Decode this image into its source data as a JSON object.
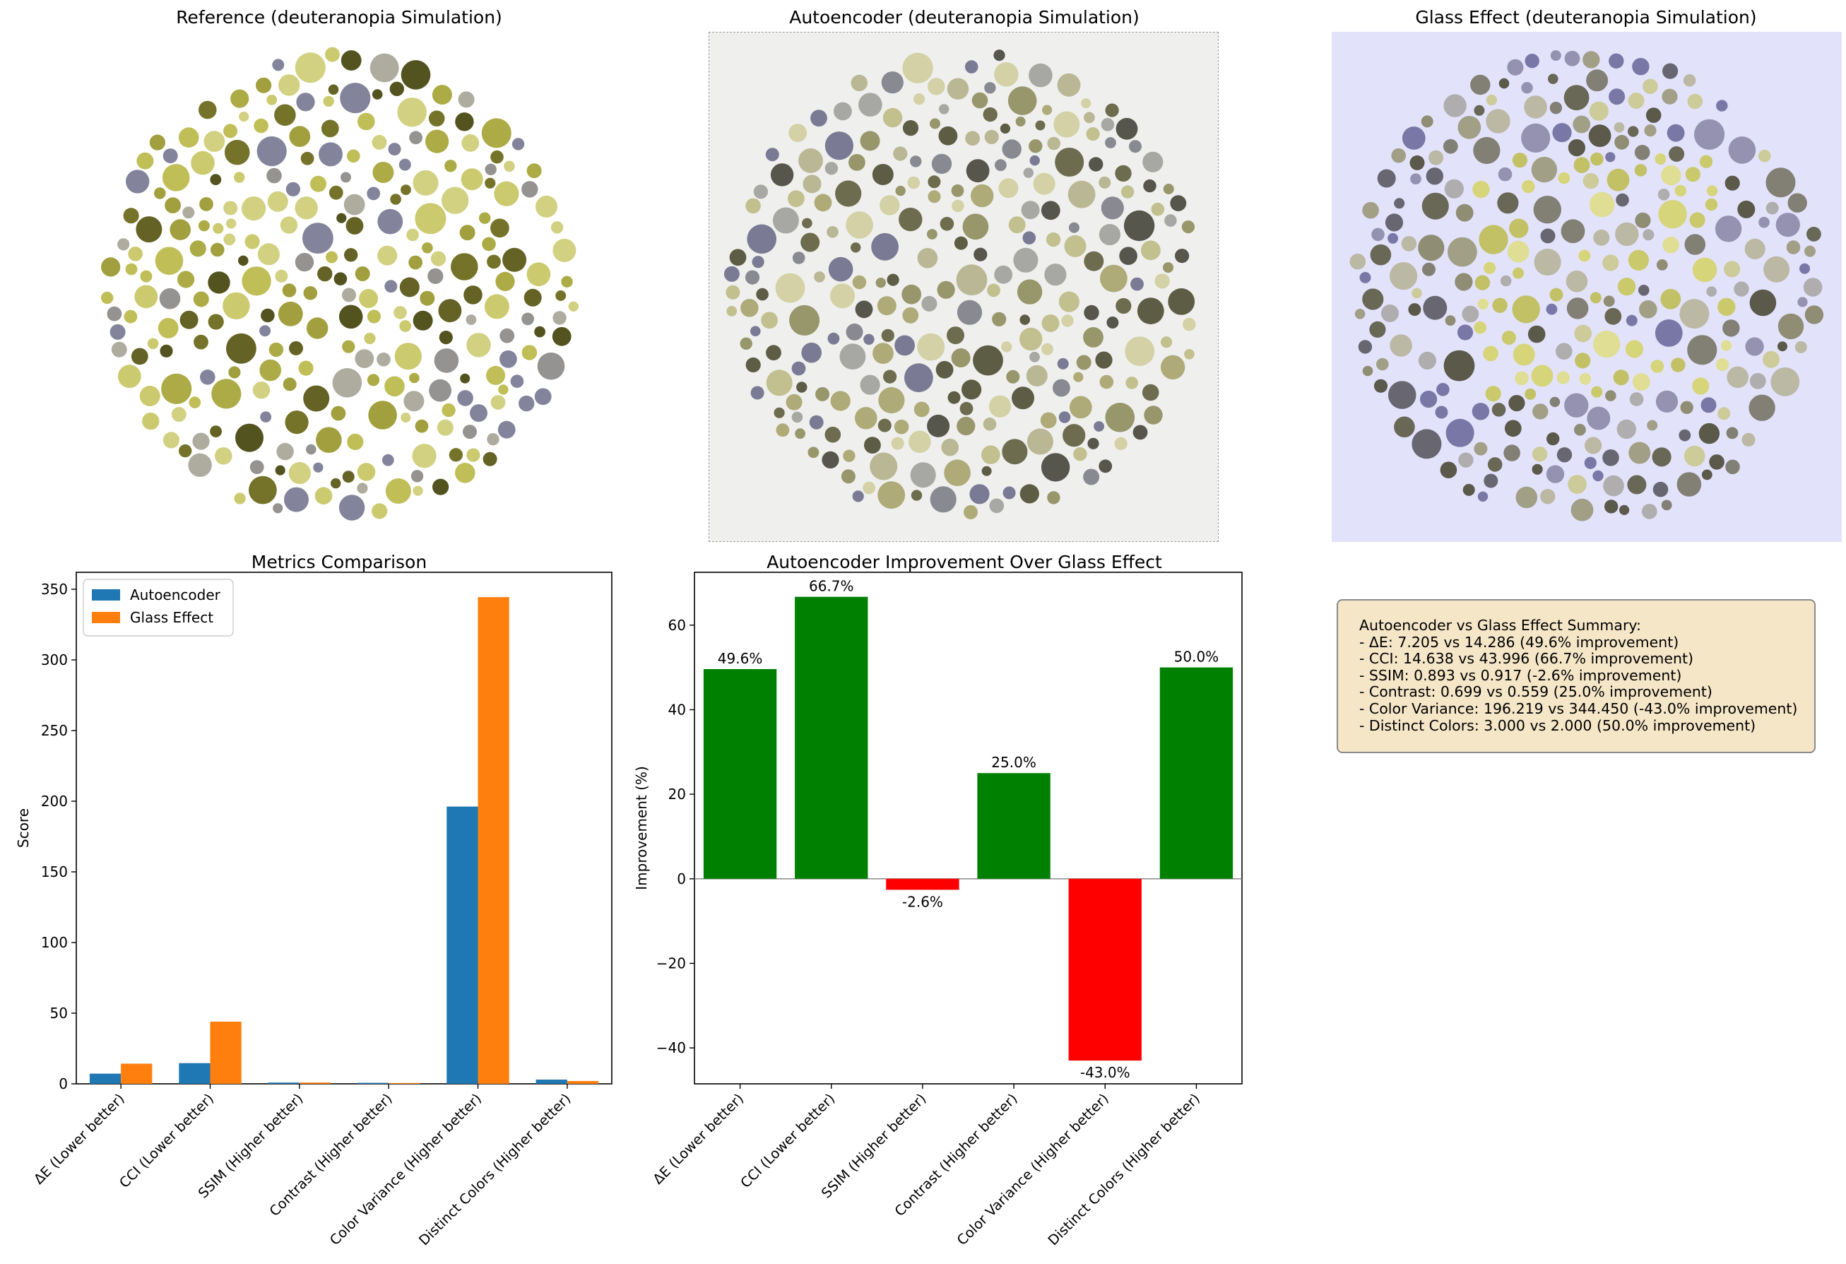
{
  "images": [
    {
      "title": "Reference (deuteranopia Simulation)",
      "kind": "reference",
      "background": "#ffffff"
    },
    {
      "title": "Autoencoder (deuteranopia Simulation)",
      "kind": "autoencoder",
      "background": "#efefed"
    },
    {
      "title": "Glass Effect (deuteranopia Simulation)",
      "kind": "glass",
      "background": "#e3e2fb"
    }
  ],
  "chart_data": [
    {
      "type": "bar",
      "title": "Metrics Comparison",
      "xlabel": "",
      "ylabel": "Score",
      "ylim": [
        0,
        362
      ],
      "yticks": [
        0,
        50,
        100,
        150,
        200,
        250,
        300,
        350
      ],
      "categories": [
        "ΔE (Lower better)",
        "CCI (Lower better)",
        "SSIM (Higher better)",
        "Contrast (Higher better)",
        "Color Variance (Higher better)",
        "Distinct Colors (Higher better)"
      ],
      "series": [
        {
          "name": "Autoencoder",
          "color": "#1f77b4",
          "values": [
            7.205,
            14.638,
            0.893,
            0.699,
            196.219,
            3.0
          ]
        },
        {
          "name": "Glass Effect",
          "color": "#ff7f0e",
          "values": [
            14.286,
            43.996,
            0.917,
            0.559,
            344.45,
            2.0
          ]
        }
      ],
      "legend": "top-left",
      "grid": false
    },
    {
      "type": "bar",
      "title": "Autoencoder Improvement Over Glass Effect",
      "xlabel": "",
      "ylabel": "Improvement (%)",
      "ylim": [
        -48.5,
        72.5
      ],
      "yticks": [
        -40,
        -20,
        0,
        20,
        40,
        60
      ],
      "categories": [
        "ΔE (Lower better)",
        "CCI (Lower better)",
        "SSIM (Higher better)",
        "Contrast (Higher better)",
        "Color Variance (Higher better)",
        "Distinct Colors (Higher better)"
      ],
      "values": [
        49.6,
        66.7,
        -2.6,
        25.0,
        -43.0,
        50.0
      ],
      "labels": [
        "49.6%",
        "66.7%",
        "-2.6%",
        "25.0%",
        "-43.0%",
        "50.0%"
      ],
      "positive_color": "#008000",
      "negative_color": "#ff0000",
      "grid": false
    }
  ],
  "summary": {
    "lines": [
      "Autoencoder vs Glass Effect Summary:",
      "- ΔE: 7.205 vs 14.286 (49.6% improvement)",
      "- CCI: 14.638 vs 43.996 (66.7% improvement)",
      "- SSIM: 0.893 vs 0.917 (-2.6% improvement)",
      "- Contrast: 0.699 vs 0.559 (25.0% improvement)",
      "- Color Variance: 196.219 vs 344.450 (-43.0% improvement)",
      "- Distinct Colors: 3.000 vs 2.000 (50.0% improvement)"
    ]
  }
}
